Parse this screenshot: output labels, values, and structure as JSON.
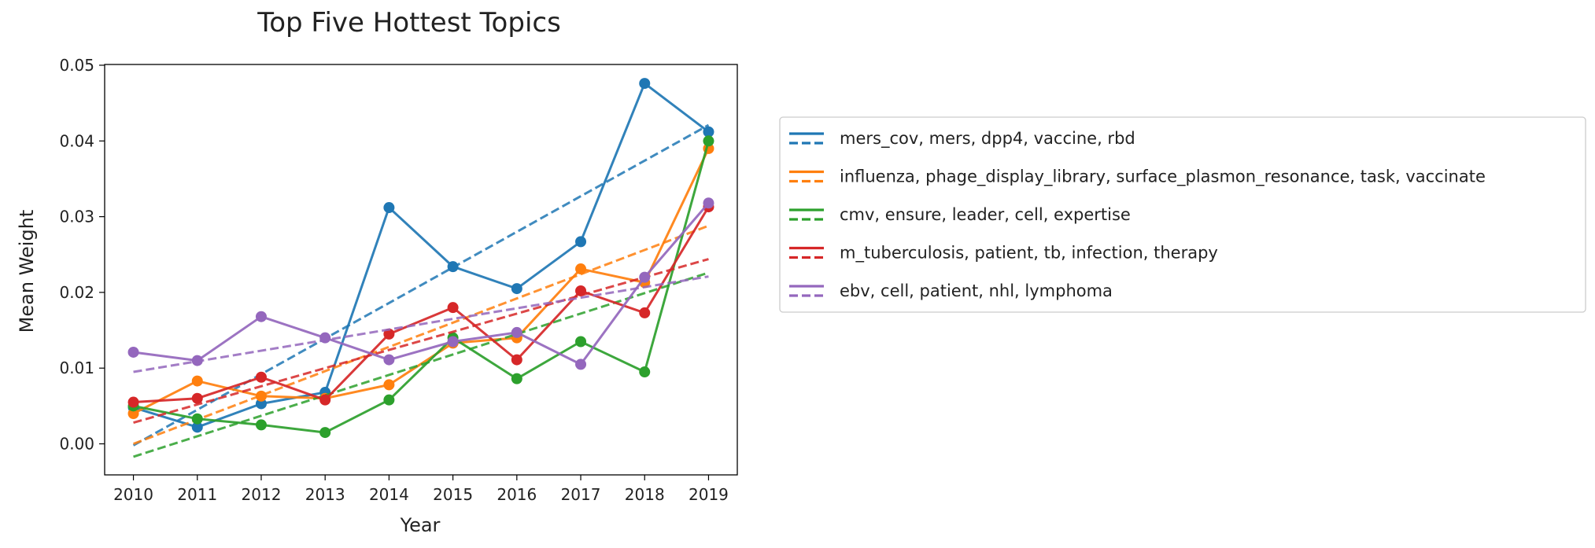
{
  "chart_data": {
    "type": "line",
    "title": "Top Five Hottest Topics",
    "xlabel": "Year",
    "ylabel": "Mean Weight",
    "x": [
      2010,
      2011,
      2012,
      2013,
      2014,
      2015,
      2016,
      2017,
      2018,
      2019
    ],
    "x_ticks": [
      "2010",
      "2011",
      "2012",
      "2013",
      "2014",
      "2015",
      "2016",
      "2017",
      "2018",
      "2019"
    ],
    "xlim": [
      2009.55,
      2019.45
    ],
    "ylim": [
      -0.0041,
      0.0501
    ],
    "y_ticks": [
      "0.00",
      "0.01",
      "0.02",
      "0.03",
      "0.04",
      "0.05"
    ],
    "grid": false,
    "legend_position": "right",
    "series": [
      {
        "name": "mers_cov, mers, dpp4, vaccine, rbd",
        "color": "#1f77b4",
        "values": [
          0.0048,
          0.0022,
          0.0053,
          0.0068,
          0.0312,
          0.0234,
          0.0205,
          0.0267,
          0.0476,
          0.0412
        ],
        "trend": [
          -0.0002,
          0.0047
        ]
      },
      {
        "name": "influenza, phage_display_library, surface_plasmon_resonance, task, vaccinate",
        "color": "#ff7f0e",
        "values": [
          0.004,
          0.0083,
          0.0063,
          0.006,
          0.0078,
          0.0133,
          0.014,
          0.0231,
          0.0213,
          0.039
        ],
        "trend": [
          0.0,
          0.0032
        ]
      },
      {
        "name": "cmv, ensure, leader, cell, expertise",
        "color": "#2ca02c",
        "values": [
          0.005,
          0.0033,
          0.0025,
          0.0015,
          0.0058,
          0.014,
          0.0086,
          0.0135,
          0.0095,
          0.04
        ],
        "trend": [
          -0.0017,
          0.0027
        ]
      },
      {
        "name": "m_tuberculosis, patient, tb, infection, therapy",
        "color": "#d62728",
        "values": [
          0.0055,
          0.006,
          0.0088,
          0.0058,
          0.0145,
          0.018,
          0.0111,
          0.0202,
          0.0173,
          0.0313
        ],
        "trend": [
          0.0028,
          0.0024
        ]
      },
      {
        "name": "ebv, cell, patient, nhl, lymphoma",
        "color": "#9467bd",
        "values": [
          0.0121,
          0.011,
          0.0168,
          0.014,
          0.0111,
          0.0135,
          0.0147,
          0.0105,
          0.022,
          0.0318
        ],
        "trend": [
          0.0095,
          0.0014
        ]
      }
    ]
  }
}
